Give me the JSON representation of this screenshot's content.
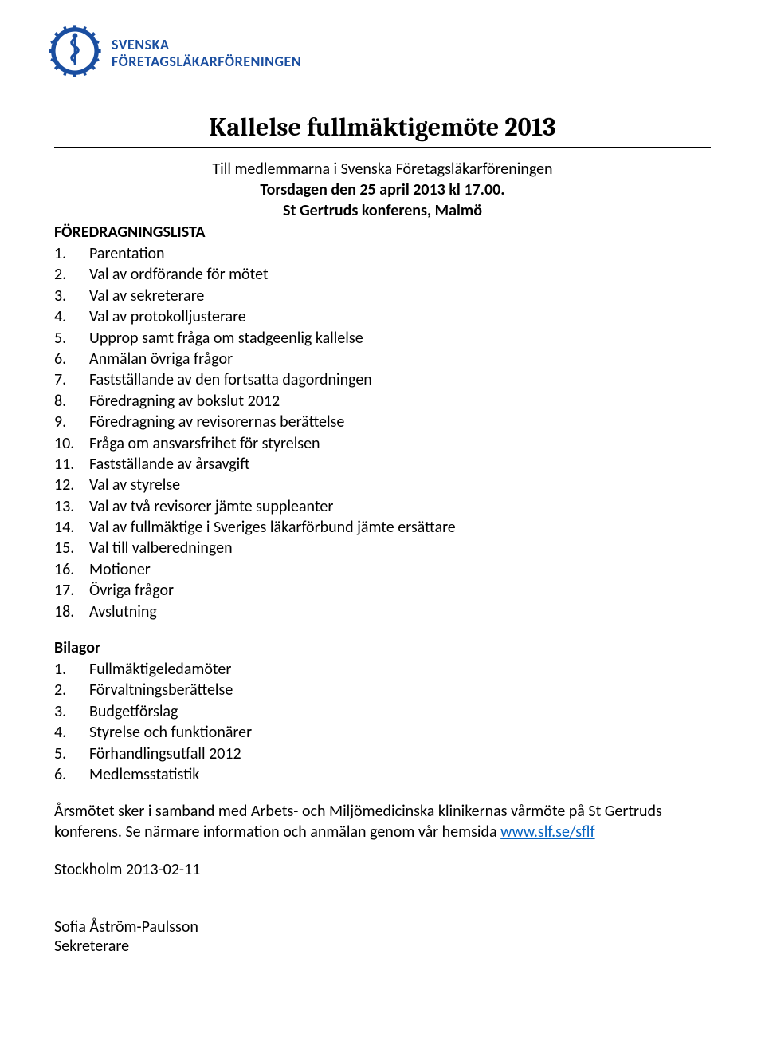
{
  "colors": {
    "text": "#000000",
    "brand_blue": "#1a4ea0",
    "link": "#0563c1",
    "background": "#ffffff",
    "rule": "#000000"
  },
  "fonts": {
    "title_family": "Cambria",
    "body_family": "Calibri",
    "title_size_pt": 24,
    "body_size_pt": 15
  },
  "logo": {
    "line1": "SVENSKA",
    "line2": "FÖRETAGSLÄKARFÖRENINGEN",
    "icon_primary": "#1a4ea0",
    "icon_secondary": "#ffffff"
  },
  "title": "Kallelse fullmäktigemöte 2013",
  "intro": {
    "line1": "Till medlemmarna i Svenska Företagsläkarföreningen",
    "line2": "Torsdagen den 25 april 2013 kl 17.00.",
    "line3": "St Gertruds konferens, Malmö"
  },
  "section1_heading": "FÖREDRAGNINGSLISTA",
  "agenda": [
    "Parentation",
    "Val av ordförande för mötet",
    "Val av sekreterare",
    "Val av protokolljusterare",
    "Upprop samt fråga om stadgeenlig kallelse",
    "Anmälan övriga frågor",
    "Fastställande av den fortsatta dagordningen",
    "Föredragning av bokslut 2012",
    "Föredragning av revisorernas berättelse",
    "Fråga om ansvarsfrihet för styrelsen",
    "Fastställande av årsavgift",
    "Val av styrelse",
    "Val av två revisorer jämte suppleanter",
    "Val av fullmäktige i Sveriges läkarförbund jämte ersättare",
    "Val till valberedningen",
    "Motioner",
    "Övriga frågor",
    "Avslutning"
  ],
  "section2_heading": "Bilagor",
  "attachments": [
    "Fullmäktigeledamöter",
    "Förvaltningsberättelse",
    "Budgetförslag",
    "Styrelse och funktionärer",
    "Förhandlingsutfall 2012",
    "Medlemsstatistik"
  ],
  "paragraph_pre": "Årsmötet sker i samband med Arbets- och Miljömedicinska klinikernas vårmöte på St Gertruds konferens. Se närmare information och anmälan genom vår hemsida ",
  "link_text": "www.slf.se/sflf",
  "date_line": "Stockholm 2013-02-11",
  "signature": {
    "name": "Sofia Åström-Paulsson",
    "role": "Sekreterare"
  }
}
